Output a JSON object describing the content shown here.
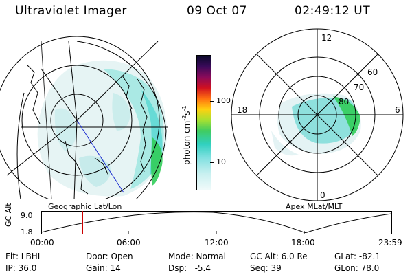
{
  "header": {
    "instrument": "Ultraviolet Imager",
    "date": "09 Oct 07",
    "time": "02:49:12 UT"
  },
  "left_panel": {
    "caption": "Geographic Lat/Lon"
  },
  "colorbar": {
    "label": "photon cm",
    "label_sup1": "-2",
    "label_mid": "s",
    "label_sup2": "-1",
    "ticks": [
      "100",
      "10"
    ]
  },
  "right_panel": {
    "caption": "Apex MLat/MLT",
    "mlt_labels": {
      "top": "12",
      "left": "18",
      "right": "6",
      "bottom": "0"
    },
    "lat_labels": [
      "60",
      "70",
      "80"
    ]
  },
  "timeline": {
    "axis_title": "GC Alt",
    "y_max": "9.0",
    "y_min": "1.8",
    "x_ticks": [
      "00:00",
      "06:00",
      "12:00",
      "18:00",
      "23:59"
    ],
    "current_time_fraction": 0.117
  },
  "info": {
    "filter": "Flt: LBHL",
    "door": "Door: Open",
    "mode": "Mode: Normal",
    "gc_alt": "GC Alt: 6.0 Re",
    "glat": "GLat: -82.1",
    "ip": "IP: 36.0",
    "gain": "Gain: 14",
    "dsp": "Dsp:   -5.4",
    "seq": "Seq: 39",
    "glon": "GLon: 78.0"
  },
  "colors": {
    "fill_light": "#e4f3f4",
    "fill_cyan": "#5fd9d4",
    "fill_green": "#32cd5a",
    "marker": "#cc0000",
    "meridian_blue": "#1a2ad0"
  }
}
